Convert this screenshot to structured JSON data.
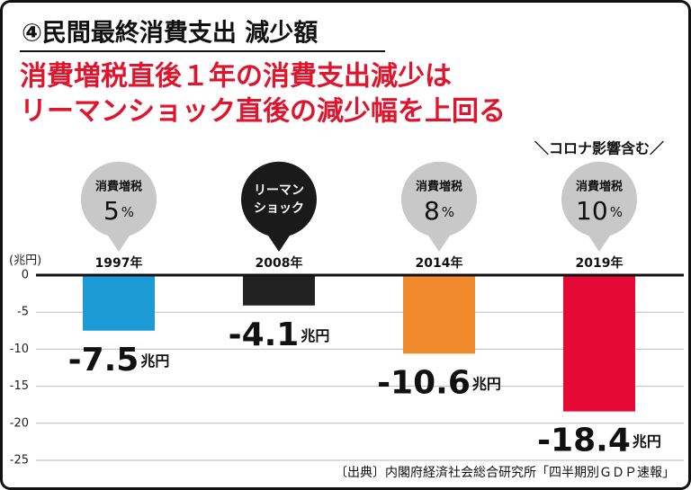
{
  "chart_data": {
    "type": "bar",
    "title": "④民間最終消費支出 減少額",
    "subtitle": [
      "消費増税直後１年の消費支出減少は",
      "リーマンショック直後の減少幅を上回る"
    ],
    "annotation": "＼コロナ影響含む／",
    "y_label": "(兆円)",
    "categories": [
      "1997年",
      "2008年",
      "2014年",
      "2019年"
    ],
    "values": [
      -7.5,
      -4.1,
      -10.6,
      -18.4
    ],
    "value_unit": "兆円",
    "colors": [
      "#1b9ad6",
      "#222222",
      "#f08a2c",
      "#e50a35"
    ],
    "bubbles": [
      {
        "lines": [
          "消費増税"
        ],
        "rate": "5",
        "unit": "%",
        "color": "#c8c8c8"
      },
      {
        "lines": [
          "リーマン",
          "ショック"
        ],
        "color": "#1a1a1a"
      },
      {
        "lines": [
          "消費増税"
        ],
        "rate": "8",
        "unit": "%",
        "color": "#c8c8c8"
      },
      {
        "lines": [
          "消費増税"
        ],
        "rate": "10",
        "unit": "%",
        "color": "#c8c8c8"
      }
    ],
    "ylim": [
      -25,
      0
    ],
    "yticks": [
      0,
      -5,
      -10,
      -15,
      -20,
      -25
    ],
    "grid": true,
    "source": "〔出典〕内閣府経済社会総合研究所「四半期別ＧＤＰ速報」"
  }
}
